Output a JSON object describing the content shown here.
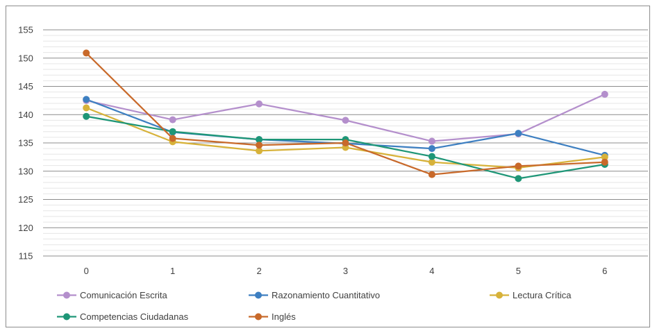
{
  "chart_data": {
    "type": "line",
    "title": "",
    "xlabel": "",
    "ylabel": "",
    "x": [
      0,
      1,
      2,
      3,
      4,
      5,
      6
    ],
    "ylim": [
      115,
      155
    ],
    "y_ticks": [
      115,
      120,
      125,
      130,
      135,
      140,
      145,
      150,
      155
    ],
    "grid": true,
    "legend_position": "bottom",
    "series": [
      {
        "name": "Comunicación Escrita",
        "color": "#b48fcc",
        "values": [
          142.5,
          139.1,
          141.9,
          139.0,
          135.3,
          136.6,
          143.6
        ]
      },
      {
        "name": "Razonamiento Cuantitativo",
        "color": "#3d7fc1",
        "values": [
          142.7,
          136.9,
          135.6,
          134.9,
          134.0,
          136.7,
          132.8
        ]
      },
      {
        "name": "Lectura Crítica",
        "color": "#d7b23a",
        "values": [
          141.2,
          135.2,
          133.6,
          134.2,
          131.6,
          130.6,
          132.5
        ]
      },
      {
        "name": "Competencias Ciudadanas",
        "color": "#1e9677",
        "values": [
          139.7,
          137.0,
          135.6,
          135.6,
          132.6,
          128.7,
          131.2
        ]
      },
      {
        "name": "Inglés",
        "color": "#c8692a",
        "values": [
          150.9,
          135.8,
          134.6,
          135.0,
          129.4,
          130.9,
          131.6
        ]
      }
    ]
  }
}
